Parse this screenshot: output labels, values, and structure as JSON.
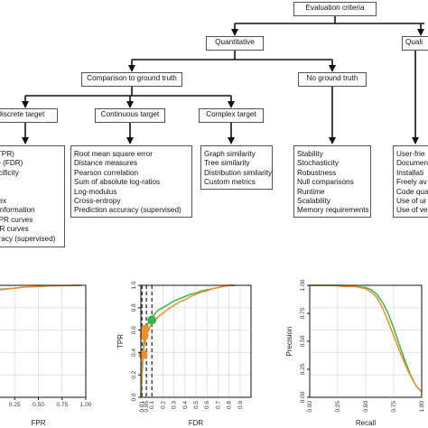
{
  "tree": {
    "root": "Evaluation criteria",
    "quantitative": "Quantitative",
    "qualitative": "Quali",
    "comparison": "Comparison to ground truth",
    "no_ground_truth": "No ground truth",
    "discrete": "Discrete target",
    "continuous": "Continuous target",
    "complex": "Complex target",
    "discrete_items": [
      "(TPR)",
      "te (FDR)",
      "ecificity",
      "ll",
      "",
      "dex",
      "l information",
      "f PR curves",
      "PR curves",
      "uracy (supervised)"
    ],
    "continuous_items": [
      "Root mean square error",
      "Distance measures",
      "Pearson correlation",
      "Sum of absolute log-ratios",
      "Log-modulus",
      "Cross-entropy",
      "Prediction accuracy (supervised)"
    ],
    "complex_items": [
      "Graph similarity",
      "Tree similarity",
      "Distribution similarity",
      "Custom metrics"
    ],
    "noground_items": [
      "Stability",
      "Stochasticity",
      "Robustness",
      "Null comparisons",
      "Runtime",
      "Scalability",
      "Memory requirements"
    ],
    "qualitative_items": [
      "User-frie",
      "Documen",
      "Installati",
      "Freely av",
      "Code qua",
      "Use of ur",
      "Use of ve"
    ]
  },
  "chart_data": [
    {
      "type": "line",
      "xlabel": "FPR",
      "xticks": [
        "0.25",
        "0.50",
        "0.75",
        "1.00"
      ],
      "xlim": [
        0,
        1
      ],
      "ylim": [
        0,
        1
      ],
      "series": [
        {
          "color": "#3cb44b",
          "x": [
            0.0,
            0.1,
            0.25,
            0.35,
            0.5,
            0.6,
            0.8,
            0.95
          ],
          "y": [
            0.955,
            0.965,
            0.975,
            0.985,
            0.99,
            0.995,
            0.998,
            1.0
          ]
        },
        {
          "color": "#f28e2b",
          "x": [
            0.0,
            0.1,
            0.25,
            0.35,
            0.5,
            0.6,
            0.8,
            0.95
          ],
          "y": [
            0.945,
            0.96,
            0.975,
            0.985,
            0.99,
            0.995,
            0.998,
            1.0
          ]
        }
      ]
    },
    {
      "type": "line",
      "xlabel": "FDR",
      "ylabel": "TPR",
      "xticks": [
        "0.01",
        "0.05",
        "0.1",
        "0.2",
        "0.3",
        "0.4",
        "0.5",
        "0.6",
        "0.7",
        "0.8",
        "0.9"
      ],
      "yticks": [
        "0.0",
        "0.2",
        "0.4",
        "0.6",
        "0.8",
        "1.0"
      ],
      "xlim": [
        0,
        1
      ],
      "ylim": [
        0,
        1
      ],
      "thresholds": [
        0.01,
        0.05,
        0.1
      ],
      "series": [
        {
          "color": "#3cb44b",
          "x": [
            0.0,
            0.03,
            0.06,
            0.09,
            0.12,
            0.16,
            0.2,
            0.25,
            0.3,
            0.35,
            0.4,
            0.45,
            0.5,
            0.55,
            0.6,
            0.65,
            0.7,
            0.75,
            0.8,
            0.85
          ],
          "y": [
            0.0,
            0.55,
            0.65,
            0.7,
            0.74,
            0.78,
            0.8,
            0.83,
            0.86,
            0.88,
            0.9,
            0.92,
            0.93,
            0.95,
            0.96,
            0.97,
            0.98,
            0.99,
            1.0,
            1.0
          ]
        },
        {
          "color": "#f28e2b",
          "x": [
            0.0,
            0.01,
            0.03,
            0.05,
            0.08,
            0.12,
            0.16,
            0.2,
            0.25,
            0.3,
            0.35,
            0.4,
            0.45,
            0.5,
            0.55,
            0.6,
            0.65,
            0.7,
            0.75,
            0.8,
            0.85
          ],
          "y": [
            0.0,
            0.3,
            0.45,
            0.57,
            0.63,
            0.68,
            0.72,
            0.75,
            0.79,
            0.82,
            0.85,
            0.87,
            0.9,
            0.92,
            0.94,
            0.95,
            0.97,
            0.98,
            0.99,
            1.0,
            1.0
          ]
        }
      ],
      "points": [
        {
          "color": "#3cb44b",
          "x": 0.1,
          "y": 0.69
        },
        {
          "color": "#f28e2b",
          "x": 0.04,
          "y": 0.61
        },
        {
          "color": "#f28e2b",
          "x": 0.03,
          "y": 0.55
        },
        {
          "color": "#f28e2b",
          "x": 0.02,
          "y": 0.38
        }
      ]
    },
    {
      "type": "line",
      "xlabel": "Recall",
      "ylabel": "Precision",
      "xticks": [
        "0.00",
        "0.25",
        "0.50",
        "0.75",
        "1.00"
      ],
      "yticks": [
        "0.00",
        "0.25",
        "0.50",
        "0.75",
        "1.00"
      ],
      "xlim": [
        0,
        1
      ],
      "ylim": [
        0,
        1
      ],
      "series": [
        {
          "color": "#3cb44b",
          "x": [
            0.0,
            0.1,
            0.2,
            0.3,
            0.4,
            0.5,
            0.55,
            0.6,
            0.65,
            0.7,
            0.75,
            0.8,
            0.85,
            0.9,
            0.95,
            1.0
          ],
          "y": [
            1.0,
            1.0,
            1.0,
            1.0,
            0.99,
            0.98,
            0.96,
            0.92,
            0.85,
            0.75,
            0.62,
            0.47,
            0.33,
            0.2,
            0.1,
            0.05
          ]
        },
        {
          "color": "#f28e2b",
          "x": [
            0.0,
            0.1,
            0.2,
            0.3,
            0.4,
            0.5,
            0.55,
            0.6,
            0.65,
            0.7,
            0.75,
            0.8,
            0.85,
            0.9,
            0.95,
            1.0
          ],
          "y": [
            1.0,
            1.0,
            1.0,
            0.99,
            0.99,
            0.97,
            0.94,
            0.89,
            0.8,
            0.68,
            0.55,
            0.42,
            0.3,
            0.19,
            0.1,
            0.05
          ]
        }
      ]
    }
  ]
}
